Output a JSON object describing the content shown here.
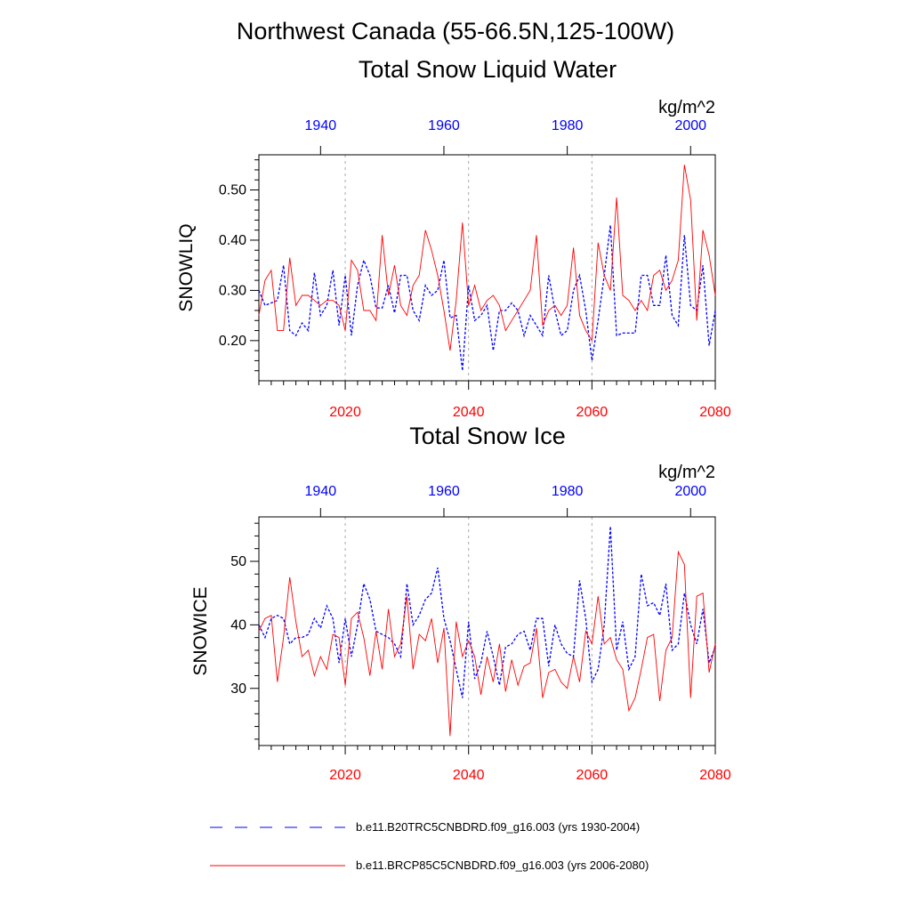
{
  "header": {
    "title": "Northwest Canada (55-66.5N,125-100W)"
  },
  "colors": {
    "historical": "#0000ff",
    "future": "#ff0000",
    "grid": "#aaaaaa",
    "axis": "#000000"
  },
  "chart_data": [
    {
      "type": "line",
      "title": "Total Snow Liquid Water",
      "ylabel": "SNOWLIQ",
      "units": "kg/m^2",
      "ylim": [
        0.12,
        0.57
      ],
      "yticks": [
        0.2,
        0.3,
        0.4,
        0.5
      ],
      "ytick_labels": [
        "0.20",
        "0.30",
        "0.40",
        "0.50"
      ],
      "bottom_axis": {
        "xlim": [
          2006,
          2080
        ],
        "ticks": [
          2020,
          2040,
          2060,
          2080
        ],
        "labels": [
          "2020",
          "2040",
          "2060",
          "2080"
        ]
      },
      "top_axis": {
        "xlim": [
          1930,
          2004
        ],
        "ticks": [
          1940,
          1960,
          1980,
          2000
        ],
        "labels": [
          "1940",
          "1960",
          "1980",
          "2000"
        ]
      },
      "grid_x": [
        2020,
        2040,
        2060
      ],
      "series": [
        {
          "name": "b.e11.B20TRC5CNBDRD.f09_g16.003 (yrs 1930-2004)",
          "x_start": 1930,
          "values": [
            0.3,
            0.27,
            0.275,
            0.28,
            0.35,
            0.22,
            0.21,
            0.235,
            0.22,
            0.335,
            0.25,
            0.27,
            0.34,
            0.23,
            0.33,
            0.21,
            0.31,
            0.36,
            0.33,
            0.265,
            0.265,
            0.31,
            0.255,
            0.33,
            0.33,
            0.26,
            0.24,
            0.31,
            0.29,
            0.3,
            0.36,
            0.245,
            0.25,
            0.14,
            0.31,
            0.24,
            0.25,
            0.27,
            0.18,
            0.26,
            0.26,
            0.275,
            0.26,
            0.21,
            0.25,
            0.23,
            0.21,
            0.33,
            0.26,
            0.21,
            0.22,
            0.3,
            0.33,
            0.26,
            0.16,
            0.24,
            0.33,
            0.43,
            0.21,
            0.215,
            0.215,
            0.215,
            0.33,
            0.33,
            0.27,
            0.27,
            0.37,
            0.25,
            0.23,
            0.41,
            0.27,
            0.26,
            0.35,
            0.19,
            0.26
          ]
        },
        {
          "name": "b.e11.BRCP85C5CNBDRD.f09_g16.003 (yrs 2006-2080)",
          "x_start": 2006,
          "values": [
            0.25,
            0.32,
            0.34,
            0.22,
            0.22,
            0.365,
            0.27,
            0.29,
            0.29,
            0.28,
            0.27,
            0.28,
            0.28,
            0.27,
            0.22,
            0.36,
            0.34,
            0.26,
            0.26,
            0.24,
            0.41,
            0.29,
            0.35,
            0.27,
            0.25,
            0.31,
            0.33,
            0.42,
            0.38,
            0.33,
            0.26,
            0.18,
            0.28,
            0.435,
            0.27,
            0.31,
            0.26,
            0.28,
            0.29,
            0.27,
            0.22,
            0.24,
            0.26,
            0.28,
            0.3,
            0.41,
            0.23,
            0.26,
            0.27,
            0.25,
            0.27,
            0.385,
            0.25,
            0.22,
            0.2,
            0.395,
            0.33,
            0.3,
            0.485,
            0.29,
            0.28,
            0.26,
            0.28,
            0.26,
            0.33,
            0.34,
            0.3,
            0.32,
            0.36,
            0.55,
            0.48,
            0.24,
            0.42,
            0.37,
            0.29
          ]
        }
      ]
    },
    {
      "type": "line",
      "title": "Total Snow Ice",
      "ylabel": "SNOWICE",
      "units": "kg/m^2",
      "ylim": [
        21,
        57
      ],
      "yticks": [
        30,
        40,
        50
      ],
      "ytick_labels": [
        "30",
        "40",
        "50"
      ],
      "bottom_axis": {
        "xlim": [
          2006,
          2080
        ],
        "ticks": [
          2020,
          2040,
          2060,
          2080
        ],
        "labels": [
          "2020",
          "2040",
          "2060",
          "2080"
        ]
      },
      "top_axis": {
        "xlim": [
          1930,
          2004
        ],
        "ticks": [
          1940,
          1960,
          1980,
          2000
        ],
        "labels": [
          "1940",
          "1960",
          "1980",
          "2000"
        ]
      },
      "grid_x": [
        2020,
        2040,
        2060
      ],
      "series": [
        {
          "name": "b.e11.B20TRC5CNBDRD.f09_g16.003 (yrs 1930-2004)",
          "x_start": 1930,
          "values": [
            40,
            38,
            41,
            41.5,
            41,
            37,
            38,
            38,
            38.5,
            41,
            39.5,
            43,
            41,
            34,
            41,
            35,
            40,
            46.5,
            44,
            39,
            38.5,
            38,
            37,
            35,
            46.5,
            40,
            41.5,
            44,
            45,
            49,
            41,
            37.5,
            33,
            28.5,
            40.5,
            31.5,
            34,
            39,
            35,
            30.5,
            36.5,
            37,
            38.5,
            39,
            36,
            41,
            41,
            33.5,
            40,
            37,
            35.5,
            35,
            47,
            41,
            31,
            33,
            40,
            55.5,
            36,
            40.5,
            33,
            35,
            48,
            43,
            43.5,
            41.5,
            46.5,
            36,
            37,
            45,
            40,
            37,
            42.5,
            34,
            36.5
          ]
        },
        {
          "name": "b.e11.BRCP85C5CNBDRD.f09_g16.003 (yrs 2006-2080)",
          "x_start": 2006,
          "values": [
            39,
            41,
            41.5,
            31,
            38,
            47.5,
            40.5,
            35,
            36,
            32,
            35,
            33,
            38.5,
            38,
            30.5,
            41,
            42,
            38,
            32,
            39,
            33,
            42.5,
            35,
            37,
            44.5,
            33,
            38.5,
            37.5,
            41,
            34,
            39.5,
            22.5,
            40.5,
            35,
            37.5,
            35,
            29,
            35,
            31,
            37,
            29.5,
            34.5,
            30.5,
            33.5,
            34,
            39.5,
            28.5,
            32.5,
            33,
            31,
            30,
            35,
            31,
            39,
            37,
            44.5,
            37,
            38,
            34.5,
            33,
            26.5,
            28.5,
            33,
            38,
            38.5,
            28,
            36,
            38,
            51.5,
            49.5,
            28.5,
            44.5,
            45,
            32.5,
            37
          ]
        }
      ]
    }
  ],
  "legend": {
    "items": [
      {
        "label": "b.e11.B20TRC5CNBDRD.f09_g16.003 (yrs 1930-2004)",
        "color": "#0000ff",
        "style": "dashed"
      },
      {
        "label": "b.e11.BRCP85C5CNBDRD.f09_g16.003 (yrs 2006-2080)",
        "color": "#ff0000",
        "style": "solid"
      }
    ]
  }
}
